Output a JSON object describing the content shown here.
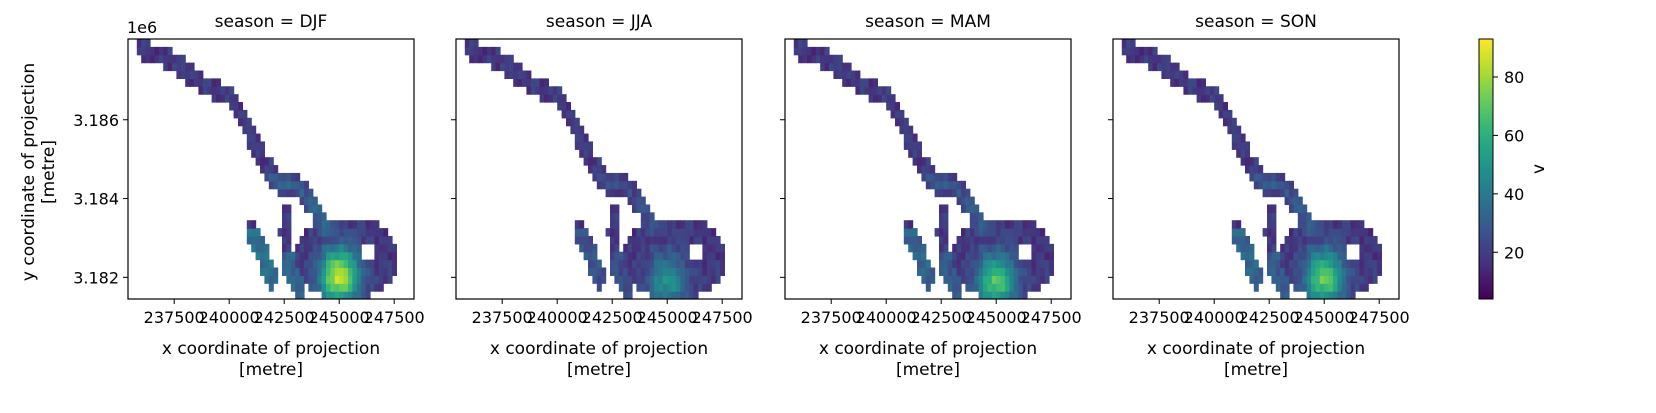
{
  "chart_data": {
    "type": "heatmap",
    "facet_title_prefix": "season = ",
    "panels": [
      {
        "season": "DJF",
        "title": "season = DJF",
        "intensity": 1.0,
        "hotspot": {
          "x": 245000,
          "y": 3182050
        }
      },
      {
        "season": "JJA",
        "title": "season = JJA",
        "intensity": 0.45,
        "hotspot": {
          "x": 245000,
          "y": 3181900
        }
      },
      {
        "season": "MAM",
        "title": "season = MAM",
        "intensity": 0.75,
        "hotspot": {
          "x": 245000,
          "y": 3181900
        }
      },
      {
        "season": "SON",
        "title": "season = SON",
        "intensity": 0.8,
        "hotspot": {
          "x": 245000,
          "y": 3182000
        }
      }
    ],
    "xlabel_line1": "x coordinate of projection",
    "xlabel_line2": "[metre]",
    "ylabel_line1": "y coordinate of projection",
    "ylabel_line2": "[metre]",
    "xlim": [
      235400,
      248400
    ],
    "ylim": [
      3181450,
      3188050
    ],
    "xticks": [
      237500,
      240000,
      242500,
      245000,
      247500
    ],
    "xtick_labels": [
      "237500",
      "240000",
      "242500",
      "245000",
      "247500"
    ],
    "yticks": [
      3182000,
      3184000,
      3186000
    ],
    "ytick_labels": [
      "3.182",
      "3.184",
      "3.186"
    ],
    "y_offset_label": "1e6",
    "colorbar": {
      "label": "v",
      "range": [
        4,
        93
      ],
      "ticks": [
        20,
        40,
        60,
        80
      ],
      "tick_labels": [
        "20",
        "40",
        "60",
        "80"
      ],
      "colormap": "viridis"
    },
    "glacier_centerline": [
      [
        236000,
        3187800
      ],
      [
        237500,
        3187500
      ],
      [
        238500,
        3187000
      ],
      [
        240000,
        3186600
      ],
      [
        240800,
        3185800
      ],
      [
        241600,
        3184900
      ],
      [
        242200,
        3184400
      ],
      [
        243200,
        3184300
      ],
      [
        244300,
        3183400
      ],
      [
        244800,
        3182700
      ],
      [
        245500,
        3182300
      ],
      [
        246500,
        3182300
      ],
      [
        247300,
        3182400
      ]
    ],
    "glacier_branches": [
      {
        "points": [
          [
            241000,
            3183200
          ],
          [
            241500,
            3182600
          ],
          [
            241900,
            3182000
          ]
        ],
        "label": ""
      },
      {
        "points": [
          [
            242500,
            3183600
          ],
          [
            242600,
            3182900
          ],
          [
            242700,
            3182300
          ],
          [
            243200,
            3181700
          ]
        ],
        "label": ""
      }
    ],
    "grid": false
  }
}
